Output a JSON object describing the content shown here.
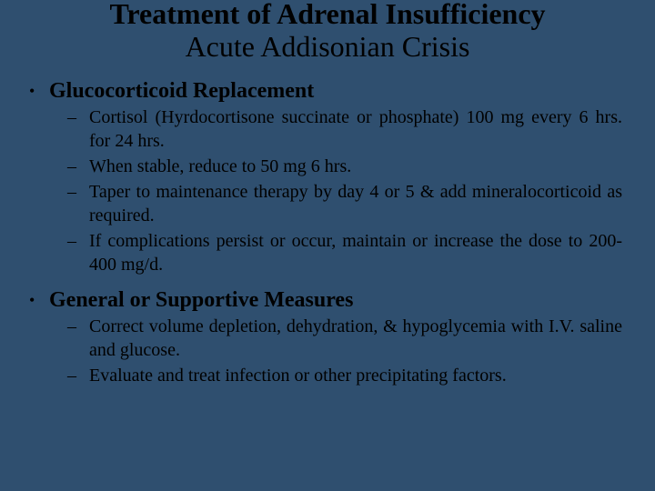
{
  "colors": {
    "background": "#2f4f6f",
    "text": "#000000"
  },
  "typography": {
    "family": "Times New Roman",
    "title_fontsize_pt": 32,
    "heading_fontsize_pt": 24,
    "body_fontsize_pt": 20
  },
  "title": {
    "line1": "Treatment of Adrenal Insufficiency",
    "line2": "Acute Addisonian Crisis"
  },
  "sections": [
    {
      "bullet": "•",
      "heading": "Glucocorticoid Replacement",
      "items": [
        {
          "dash": "–",
          "text": "Cortisol (Hyrdocortisone succinate or phosphate) 100 mg every 6 hrs. for 24 hrs."
        },
        {
          "dash": "–",
          "text": "When stable, reduce to 50 mg 6 hrs."
        },
        {
          "dash": "–",
          "text": " Taper to maintenance therapy by day 4 or 5 & add mineralocorticoid as required."
        },
        {
          "dash": "–",
          "text": "If complications persist or occur, maintain or increase the dose to 200-400 mg/d."
        }
      ]
    },
    {
      "bullet": "•",
      "heading": "General or Supportive Measures",
      "items": [
        {
          "dash": "–",
          "text": "Correct volume depletion, dehydration, & hypoglycemia with I.V. saline and glucose."
        },
        {
          "dash": "–",
          "text": "Evaluate and treat infection or other precipitating factors."
        }
      ]
    }
  ]
}
